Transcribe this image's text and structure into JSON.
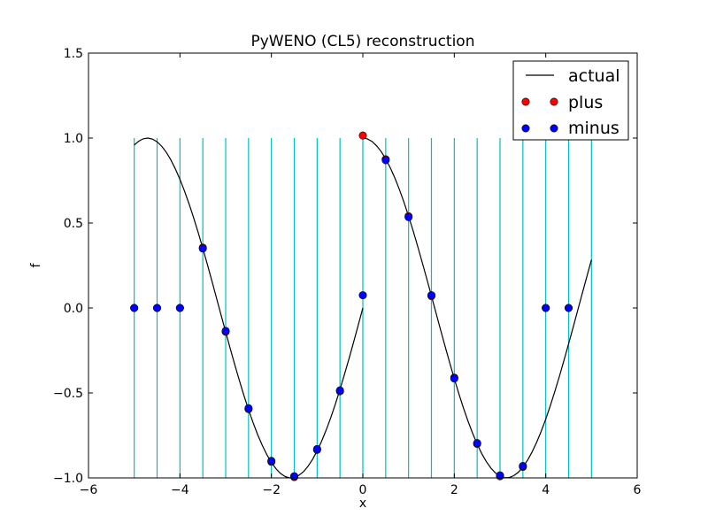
{
  "chart_data": {
    "type": "line",
    "title": "PyWENO (CL5) reconstruction",
    "xlabel": "x",
    "ylabel": "f",
    "xlim": [
      -6,
      6
    ],
    "ylim": [
      -1.0,
      1.5
    ],
    "xticks": [
      -6,
      -4,
      -2,
      0,
      2,
      4,
      6
    ],
    "xtick_labels": [
      "−6",
      "−4",
      "−2",
      "0",
      "2",
      "4",
      "6"
    ],
    "yticks": [
      -1.0,
      -0.5,
      0.0,
      0.5,
      1.0,
      1.5
    ],
    "ytick_labels": [
      "−1.0",
      "−0.5",
      "0.0",
      "0.5",
      "1.0",
      "1.5"
    ],
    "grid": false,
    "legend_position": "top-right",
    "cell_boundaries": {
      "x": [
        -5,
        -4.5,
        -4,
        -3.5,
        -3,
        -2.5,
        -2,
        -1.5,
        -1,
        -0.5,
        0,
        0.5,
        1,
        1.5,
        2,
        2.5,
        3,
        3.5,
        4,
        4.5,
        5
      ],
      "y_range": [
        -1.0,
        1.0
      ],
      "color": "#00bfbf"
    },
    "series": [
      {
        "name": "actual",
        "kind": "line",
        "color": "#000000",
        "x": [
          -5.0,
          -4.9,
          -4.8,
          -4.7,
          -4.6,
          -4.5,
          -4.4,
          -4.3,
          -4.2,
          -4.1,
          -4.0,
          -3.9,
          -3.8,
          -3.7,
          -3.6,
          -3.5,
          -3.4,
          -3.3,
          -3.2,
          -3.1,
          -3.0,
          -2.9,
          -2.8,
          -2.7,
          -2.6,
          -2.5,
          -2.4,
          -2.3,
          -2.2,
          -2.1,
          -2.0,
          -1.9,
          -1.8,
          -1.7,
          -1.6,
          -1.5,
          -1.4,
          -1.3,
          -1.2,
          -1.1,
          -1.0,
          -0.9,
          -0.8,
          -0.7,
          -0.6,
          -0.5,
          -0.4,
          -0.3,
          -0.2,
          -0.1,
          0.0
        ],
        "y": [
          0.959,
          0.982,
          0.996,
          1.0,
          0.994,
          0.978,
          0.952,
          0.917,
          0.872,
          0.818,
          0.757,
          0.688,
          0.612,
          0.53,
          0.443,
          0.351,
          0.256,
          0.158,
          0.058,
          -0.042,
          -0.141,
          -0.239,
          -0.335,
          -0.427,
          -0.516,
          -0.598,
          -0.675,
          -0.746,
          -0.808,
          -0.863,
          -0.909,
          -0.946,
          -0.974,
          -0.992,
          -1.0,
          -0.997,
          -0.985,
          -0.964,
          -0.932,
          -0.891,
          -0.841,
          -0.783,
          -0.717,
          -0.644,
          -0.565,
          -0.479,
          -0.389,
          -0.296,
          -0.199,
          -0.1,
          0.0
        ]
      },
      {
        "name": "",
        "kind": "line",
        "color": "#000000",
        "x": [
          0.0,
          0.1,
          0.2,
          0.3,
          0.4,
          0.5,
          0.6,
          0.7,
          0.8,
          0.9,
          1.0,
          1.1,
          1.2,
          1.3,
          1.4,
          1.5,
          1.6,
          1.7,
          1.8,
          1.9,
          2.0,
          2.1,
          2.2,
          2.3,
          2.4,
          2.5,
          2.6,
          2.7,
          2.8,
          2.9,
          3.0,
          3.1,
          3.2,
          3.3,
          3.4,
          3.5,
          3.6,
          3.7,
          3.8,
          3.9,
          4.0,
          4.1,
          4.2,
          4.3,
          4.4,
          4.5,
          4.6,
          4.7,
          4.8,
          4.9,
          5.0
        ],
        "y": [
          1.0,
          0.995,
          0.98,
          0.955,
          0.921,
          0.878,
          0.825,
          0.765,
          0.697,
          0.622,
          0.54,
          0.454,
          0.362,
          0.267,
          0.17,
          0.071,
          -0.029,
          -0.129,
          -0.227,
          -0.323,
          -0.416,
          -0.505,
          -0.589,
          -0.666,
          -0.737,
          -0.801,
          -0.857,
          -0.904,
          -0.942,
          -0.971,
          -0.99,
          -0.999,
          -0.998,
          -0.987,
          -0.967,
          -0.936,
          -0.897,
          -0.848,
          -0.791,
          -0.726,
          -0.654,
          -0.575,
          -0.49,
          -0.401,
          -0.307,
          -0.211,
          -0.113,
          -0.013,
          0.087,
          0.186,
          0.284
        ]
      },
      {
        "name": "plus",
        "kind": "scatter",
        "color": "#ff0000",
        "x": [
          -5,
          -4.5,
          -4,
          -3.5,
          -3,
          -2.5,
          -2,
          -1.5,
          -1,
          -0.5,
          0,
          0.5,
          1,
          1.5,
          2,
          2.5,
          3,
          3.5,
          4,
          4.5
        ],
        "y": [
          0.0,
          0.0,
          0.0,
          0.355,
          -0.14,
          -0.595,
          -0.905,
          -0.995,
          -0.835,
          -0.49,
          1.015,
          0.875,
          0.54,
          0.07,
          -0.41,
          -0.8,
          -0.99,
          -0.935,
          0.0,
          0.0
        ]
      },
      {
        "name": "minus",
        "kind": "scatter",
        "color": "#0000ff",
        "x": [
          -5,
          -4.5,
          -4,
          -3.5,
          -3,
          -2.5,
          -2,
          -1.5,
          -1,
          -0.5,
          0,
          0.5,
          1,
          1.5,
          2,
          2.5,
          3,
          3.5,
          4,
          4.5
        ],
        "y": [
          0.0,
          0.0,
          0.0,
          0.35,
          -0.135,
          -0.59,
          -0.9,
          -0.99,
          -0.83,
          -0.485,
          0.075,
          0.87,
          0.535,
          0.075,
          -0.415,
          -0.795,
          -0.985,
          -0.93,
          0.0,
          0.0
        ]
      }
    ]
  }
}
